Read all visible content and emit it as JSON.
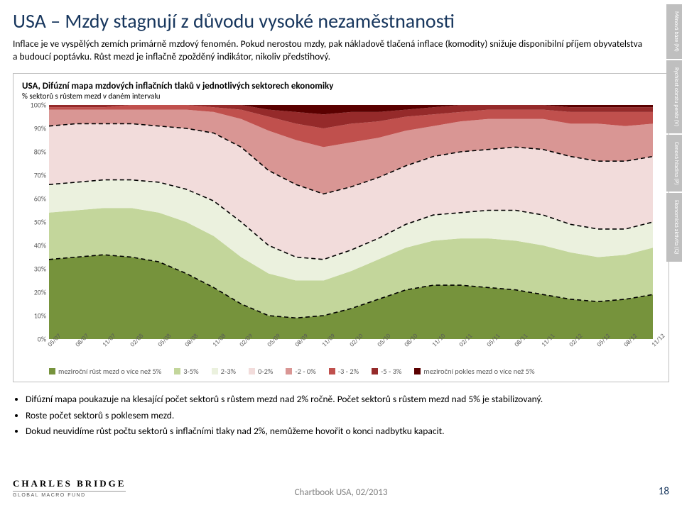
{
  "header": {
    "title": "USA – Mzdy stagnují z důvodu vysoké nezaměstnanosti",
    "intro": "Inflace je ve vyspělých zemích primárně mzdový fenomén. Pokud nerostou mzdy, pak nákladově tlačená inflace (komodity) snižuje disponibilní příjem obyvatelstva a budoucí poptávku. Růst mezd je inflačně zpožděný indikátor, nikoliv předstihový."
  },
  "chart": {
    "type": "stacked-area",
    "title": "USA, Difúzní mapa mzdových inflačních tlaků v jednotlivých sektorech ekonomiky",
    "subtitle": "% sektorů s růstem mezd v daném intervalu",
    "y": {
      "min": 0,
      "max": 100,
      "step": 10,
      "ticks": [
        "0%",
        "10%",
        "20%",
        "30%",
        "40%",
        "50%",
        "60%",
        "70%",
        "80%",
        "90%",
        "100%"
      ]
    },
    "x_labels": [
      "05/07",
      "08/07",
      "11/07",
      "02/08",
      "05/08",
      "08/08",
      "11/08",
      "02/09",
      "05/09",
      "08/09",
      "11/09",
      "02/10",
      "05/10",
      "08/10",
      "11/10",
      "02/11",
      "05/11",
      "08/11",
      "11/11",
      "02/12",
      "05/12",
      "08/12",
      "11/12"
    ],
    "bands_top_to_bottom": [
      {
        "id": "decline_gt5",
        "legend": "meziroční pokles mezd o více než 5%",
        "color": "#5a0000",
        "cum": [
          100,
          100,
          100,
          100,
          100,
          100,
          100,
          100,
          100,
          100,
          100,
          100,
          100,
          100,
          100,
          100,
          100,
          100,
          100,
          100,
          100,
          100,
          100
        ]
      },
      {
        "id": "m5_m3",
        "legend": "-5 - 3%",
        "color": "#952a2a",
        "cum": [
          100,
          100,
          100,
          100,
          100,
          100,
          100,
          100,
          98,
          97,
          96,
          97,
          97,
          98,
          99,
          100,
          100,
          100,
          100,
          99,
          99,
          99,
          99
        ]
      },
      {
        "id": "m3_m2",
        "legend": "-3 - 2%",
        "color": "#c0504d",
        "cum": [
          99,
          99,
          99,
          100,
          100,
          100,
          99,
          98,
          95,
          92,
          90,
          92,
          93,
          95,
          96,
          97,
          98,
          98,
          98,
          97,
          97,
          97,
          97
        ]
      },
      {
        "id": "m2_0",
        "legend": "-2 - 0%",
        "color": "#d99694",
        "cum": [
          98,
          98,
          98,
          98,
          98,
          98,
          97,
          94,
          89,
          85,
          82,
          84,
          86,
          89,
          91,
          93,
          94,
          94,
          94,
          92,
          92,
          91,
          92
        ]
      },
      {
        "id": "p0_2",
        "legend": "0-2%",
        "color": "#f2dcdb",
        "cum": [
          91,
          92,
          92,
          92,
          91,
          90,
          88,
          82,
          72,
          66,
          62,
          65,
          69,
          74,
          78,
          80,
          81,
          82,
          81,
          78,
          76,
          76,
          78
        ]
      },
      {
        "id": "p2_3",
        "legend": "2-3%",
        "color": "#ebf1de",
        "cum": [
          66,
          67,
          68,
          68,
          67,
          64,
          59,
          50,
          40,
          35,
          34,
          38,
          43,
          49,
          53,
          54,
          55,
          55,
          53,
          49,
          47,
          47,
          50
        ]
      },
      {
        "id": "p3_5",
        "legend": "3-5%",
        "color": "#c3d69b",
        "cum": [
          54,
          55,
          56,
          56,
          54,
          50,
          44,
          35,
          28,
          25,
          25,
          29,
          34,
          39,
          42,
          43,
          43,
          42,
          40,
          37,
          35,
          36,
          39
        ]
      },
      {
        "id": "gt5",
        "legend": "meziroční růst mezd o více než 5%",
        "color": "#76933c",
        "cum": [
          34,
          35,
          36,
          35,
          33,
          28,
          22,
          15,
          10,
          9,
          10,
          13,
          17,
          21,
          23,
          23,
          22,
          21,
          19,
          17,
          16,
          17,
          19
        ]
      }
    ],
    "baseline_bottom": [
      0,
      0,
      0,
      0,
      0,
      0,
      0,
      0,
      0,
      0,
      0,
      0,
      0,
      0,
      0,
      0,
      0,
      0,
      0,
      0,
      0,
      0,
      0
    ],
    "dashed_lines": [
      {
        "color": "#000000",
        "values": [
          91,
          92,
          92,
          92,
          91,
          90,
          88,
          82,
          72,
          66,
          62,
          65,
          69,
          74,
          78,
          80,
          81,
          82,
          81,
          78,
          76,
          76,
          78
        ]
      },
      {
        "color": "#000000",
        "values": [
          66,
          67,
          68,
          68,
          67,
          64,
          59,
          50,
          40,
          35,
          34,
          38,
          43,
          49,
          53,
          54,
          55,
          55,
          53,
          49,
          47,
          47,
          50
        ]
      },
      {
        "color": "#000000",
        "values": [
          34,
          35,
          36,
          35,
          33,
          28,
          22,
          15,
          10,
          9,
          10,
          13,
          17,
          21,
          23,
          23,
          22,
          21,
          19,
          17,
          16,
          17,
          19
        ]
      }
    ],
    "line_dash": "6 4",
    "line_width": 1.6,
    "background": "#ffffff",
    "gridline_color": "#d9d9d9"
  },
  "legend_order": [
    "gt5",
    "p3_5",
    "p2_3",
    "p0_2",
    "m2_0",
    "m3_m2",
    "m5_m3",
    "decline_gt5"
  ],
  "bullets": [
    "Difúzní mapa poukazuje na klesající počet sektorů s růstem mezd nad 2% ročně. Počet sektorů s růstem mezd nad 5% je stabilizovaný.",
    "Roste počet sektorů s poklesem mezd.",
    "Dokud neuvidíme růst počtu sektorů s inflačními tlaky nad 2%, nemůžeme hovořit o konci nadbytku kapacit."
  ],
  "side_tabs": [
    "Měnová báze (M)",
    "Rychlost obratu peněz (V)",
    "Cenová hladina (P)",
    "Ekonomická aktivita (Q)"
  ],
  "footer": {
    "logo_main": "CHARLES BRIDGE",
    "logo_sub": "GLOBAL MACRO FUND",
    "center": "Chartbook USA, 02/2013",
    "page": "18"
  },
  "colors": {
    "title": "#17365d",
    "box_border": "#bfbfbf",
    "tab_bg": "#bfbfbf",
    "tab_fg": "#ffffff",
    "footer_text": "#7f7f7f"
  }
}
